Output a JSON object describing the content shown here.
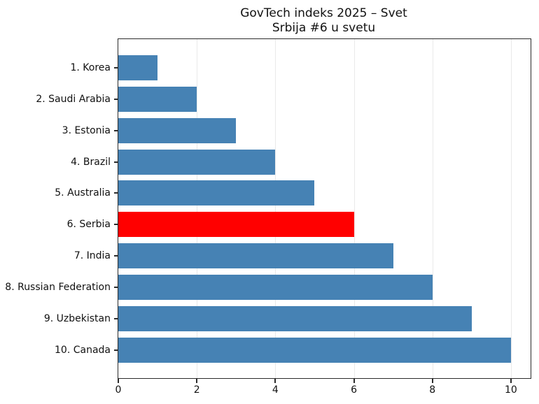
{
  "chart_data": {
    "type": "bar",
    "orientation": "horizontal",
    "title": "GovTech indeks 2025 – Svet",
    "subtitle": "Srbija #6 u svetu",
    "categories": [
      "1. Korea",
      "2. Saudi Arabia",
      "3. Estonia",
      "4. Brazil",
      "5. Australia",
      "6. Serbia",
      "7. India",
      "8. Russian Federation",
      "9. Uzbekistan",
      "10. Canada"
    ],
    "values": [
      1,
      2,
      3,
      4,
      5,
      6,
      7,
      8,
      9,
      10
    ],
    "highlight_category": "6. Serbia",
    "bar_color": "#4682B4",
    "highlight_color": "#FF0000",
    "xlim": [
      0,
      10.5
    ],
    "xticks": [
      0,
      2,
      4,
      6,
      8,
      10
    ],
    "grid": "vertical-at-xticks",
    "legend": "none"
  }
}
